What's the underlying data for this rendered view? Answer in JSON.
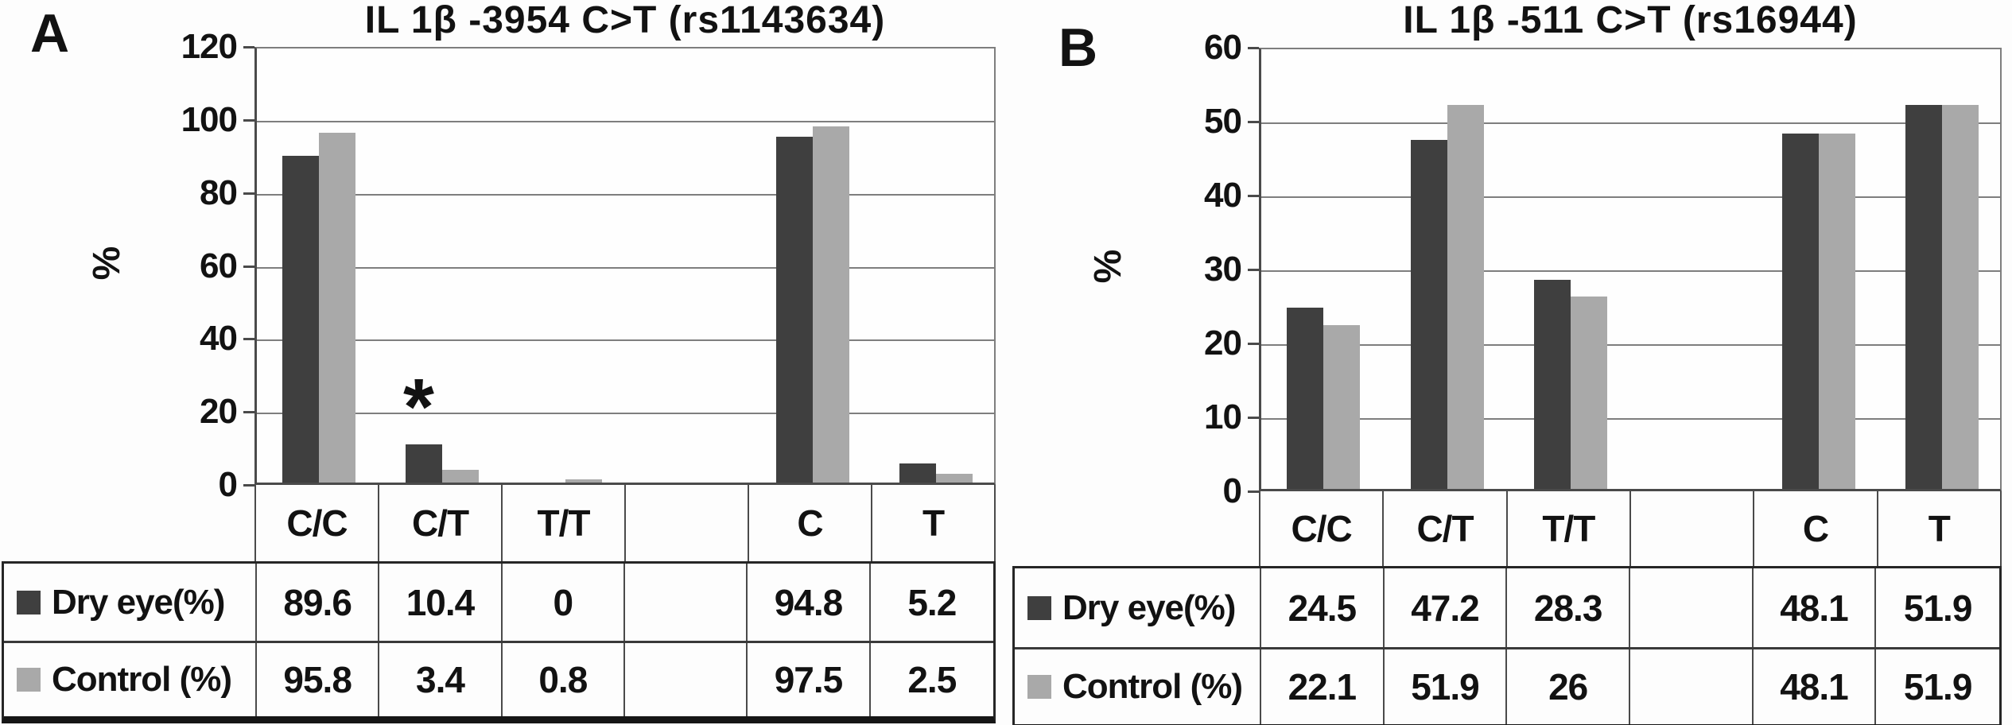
{
  "figure_type": "two-panel genotype/allele frequency bar charts with data tables",
  "chart_data": [
    {
      "type": "bar",
      "panel_label": "A",
      "title": "IL 1β -3954 C>T (rs1143634)",
      "ylabel": "%",
      "ylim": [
        0,
        120
      ],
      "ytick_step": 20,
      "yticks": [
        0,
        20,
        40,
        60,
        80,
        100,
        120
      ],
      "grid": "horizontal",
      "legend_position": "table-left",
      "categories": [
        "C/C",
        "C/T",
        "T/T",
        "",
        "C",
        "T"
      ],
      "series": [
        {
          "name": "Dry eye(%)",
          "color": "#3f3f3f",
          "values": [
            89.6,
            10.4,
            0,
            null,
            94.8,
            5.2
          ],
          "display": [
            "89.6",
            "10.4",
            "0",
            "",
            "94.8",
            "5.2"
          ]
        },
        {
          "name": "Control (%)",
          "color": "#a9a9a9",
          "values": [
            95.8,
            3.4,
            0.8,
            null,
            97.5,
            2.5
          ],
          "display": [
            "95.8",
            "3.4",
            "0.8",
            "",
            "97.5",
            "2.5"
          ]
        }
      ],
      "annotation": {
        "text": "*",
        "category": "C/T"
      }
    },
    {
      "type": "bar",
      "panel_label": "B",
      "title": "IL 1β -511 C>T (rs16944)",
      "ylabel": "%",
      "ylim": [
        0,
        60
      ],
      "ytick_step": 10,
      "yticks": [
        0,
        10,
        20,
        30,
        40,
        50,
        60
      ],
      "grid": "horizontal",
      "legend_position": "table-left",
      "categories": [
        "C/C",
        "C/T",
        "T/T",
        "",
        "C",
        "T"
      ],
      "series": [
        {
          "name": "Dry eye(%)",
          "color": "#3f3f3f",
          "values": [
            24.5,
            47.2,
            28.3,
            null,
            48.1,
            51.9
          ],
          "display": [
            "24.5",
            "47.2",
            "28.3",
            "",
            "48.1",
            "51.9"
          ]
        },
        {
          "name": "Control (%)",
          "color": "#a9a9a9",
          "values": [
            22.1,
            51.9,
            26,
            null,
            48.1,
            51.9
          ],
          "display": [
            "22.1",
            "51.9",
            "26",
            "",
            "48.1",
            "51.9"
          ]
        }
      ],
      "annotation": null
    }
  ],
  "colors": {
    "dry_eye_bar": "#3f3f3f",
    "control_bar": "#a9a9a9",
    "gridline": "#7e7e7e",
    "axis": "#4a4a4a",
    "table_border": "#262626",
    "thick_bottom_bar": "#161616",
    "background": "#fdfdfd",
    "text": "#121212"
  }
}
